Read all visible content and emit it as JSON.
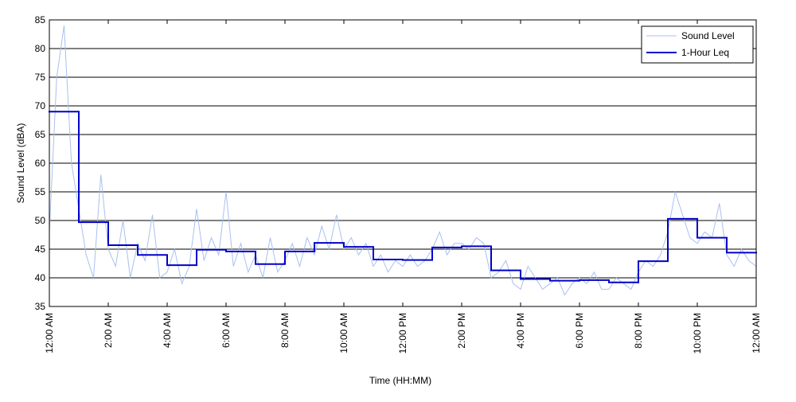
{
  "chart_data": {
    "type": "line",
    "xlabel": "Time (HH:MM)",
    "ylabel": "Sound Level (dBA)",
    "xlim": [
      0,
      24
    ],
    "ylim": [
      35,
      85
    ],
    "yticks": [
      35,
      40,
      45,
      50,
      55,
      60,
      65,
      70,
      75,
      80,
      85
    ],
    "xticks": [
      {
        "value": 0,
        "label": "12:00 AM"
      },
      {
        "value": 2,
        "label": "2:00 AM"
      },
      {
        "value": 4,
        "label": "4:00 AM"
      },
      {
        "value": 6,
        "label": "6:00 AM"
      },
      {
        "value": 8,
        "label": "8:00 AM"
      },
      {
        "value": 10,
        "label": "10:00 AM"
      },
      {
        "value": 12,
        "label": "12:00 PM"
      },
      {
        "value": 14,
        "label": "2:00 PM"
      },
      {
        "value": 16,
        "label": "4:00 PM"
      },
      {
        "value": 18,
        "label": "6:00 PM"
      },
      {
        "value": 20,
        "label": "8:00 PM"
      },
      {
        "value": 22,
        "label": "10:00 PM"
      },
      {
        "value": 24,
        "label": "12:00 AM"
      }
    ],
    "grid": true,
    "legend": "upper right",
    "series": [
      {
        "name": "Sound Level",
        "color": "#a8c0f0",
        "style": "line",
        "x": [
          0,
          0.25,
          0.5,
          0.75,
          1,
          1.25,
          1.5,
          1.75,
          2,
          2.25,
          2.5,
          2.75,
          3,
          3.25,
          3.5,
          3.75,
          4,
          4.25,
          4.5,
          4.75,
          5,
          5.25,
          5.5,
          5.75,
          6,
          6.25,
          6.5,
          6.75,
          7,
          7.25,
          7.5,
          7.75,
          8,
          8.25,
          8.5,
          8.75,
          9,
          9.25,
          9.5,
          9.75,
          10,
          10.25,
          10.5,
          10.75,
          11,
          11.25,
          11.5,
          11.75,
          12,
          12.25,
          12.5,
          12.75,
          13,
          13.25,
          13.5,
          13.75,
          14,
          14.25,
          14.5,
          14.75,
          15,
          15.25,
          15.5,
          15.75,
          16,
          16.25,
          16.5,
          16.75,
          17,
          17.25,
          17.5,
          17.75,
          18,
          18.25,
          18.5,
          18.75,
          19,
          19.25,
          19.5,
          19.75,
          20,
          20.25,
          20.5,
          20.75,
          21,
          21.25,
          21.5,
          21.75,
          22,
          22.25,
          22.5,
          22.75,
          23,
          23.25,
          23.5,
          23.75,
          24
        ],
        "values": [
          48,
          75,
          84,
          60,
          52,
          44,
          40,
          58,
          45,
          42,
          50,
          40,
          46,
          43,
          51,
          40,
          41,
          45,
          39,
          42,
          52,
          43,
          47,
          44,
          55,
          42,
          46,
          41,
          44,
          40,
          47,
          41,
          43,
          46,
          42,
          47,
          44,
          49,
          45,
          51,
          45,
          47,
          44,
          46,
          42,
          44,
          41,
          43,
          42,
          44,
          42,
          43,
          45,
          48,
          44,
          46,
          46,
          45,
          47,
          46,
          40,
          41,
          43,
          39,
          38,
          42,
          40,
          38,
          39,
          40,
          37,
          39,
          40,
          39,
          41,
          38,
          38,
          40,
          39,
          38,
          41,
          43,
          42,
          44,
          48,
          55,
          51,
          47,
          46,
          48,
          47,
          53,
          44,
          42,
          45,
          43,
          42
        ]
      },
      {
        "name": "1-Hour Leq",
        "color": "#0000cc",
        "style": "step",
        "x": [
          0,
          1,
          2,
          3,
          4,
          5,
          6,
          7,
          8,
          9,
          10,
          11,
          12,
          13,
          14,
          15,
          16,
          17,
          18,
          19,
          20,
          21,
          22,
          23
        ],
        "values": [
          69,
          49.7,
          45.7,
          44,
          42.2,
          44.9,
          44.6,
          42.4,
          44.6,
          46.1,
          45.4,
          43.2,
          43.1,
          45.3,
          45.5,
          41.3,
          39.8,
          39.5,
          39.6,
          39.2,
          42.9,
          50.3,
          47,
          44.4
        ]
      }
    ]
  }
}
